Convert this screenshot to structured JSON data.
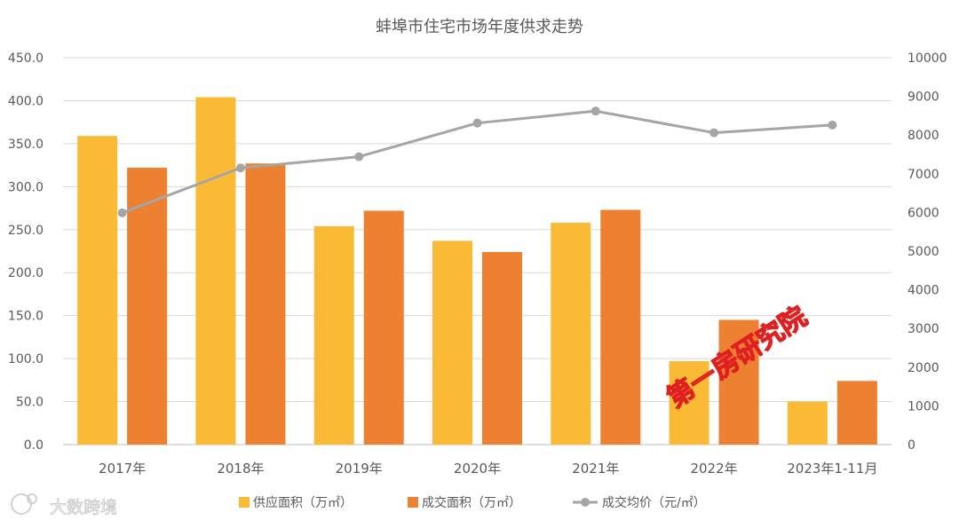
{
  "chart_data": {
    "type": "bar",
    "title": "蚌埠市住宅市场年度供求走势",
    "categories": [
      "2017年",
      "2018年",
      "2019年",
      "2020年",
      "2021年",
      "2022年",
      "2023年1-11月"
    ],
    "series": [
      {
        "name": "供应面积（万㎡）",
        "type": "bar",
        "axis": "left",
        "color": "#FBBA35",
        "values": [
          359,
          404,
          254,
          237,
          258,
          97,
          50
        ]
      },
      {
        "name": "成交面积（万㎡）",
        "type": "bar",
        "axis": "left",
        "color": "#EE8032",
        "values": [
          322,
          327,
          272,
          224,
          273,
          145,
          74
        ]
      },
      {
        "name": "成交均价（元/㎡）",
        "type": "line",
        "axis": "right",
        "color": "#A5A5A5",
        "values": [
          5990,
          7150,
          7440,
          8310,
          8620,
          8060,
          8260
        ]
      }
    ],
    "ylim_left": [
      0,
      450
    ],
    "yticks_left": [
      "0.0",
      "50.0",
      "100.0",
      "150.0",
      "200.0",
      "250.0",
      "300.0",
      "350.0",
      "400.0",
      "450.0"
    ],
    "ylim_right": [
      0,
      10000
    ],
    "yticks_right": [
      "0",
      "1000",
      "2000",
      "3000",
      "4000",
      "5000",
      "6000",
      "7000",
      "8000",
      "9000",
      "10000"
    ],
    "grid": true,
    "legend_position": "bottom"
  },
  "watermark": {
    "text": "第一房研究院",
    "color": "#E02020"
  },
  "logo": {
    "text": "大数跨境"
  }
}
